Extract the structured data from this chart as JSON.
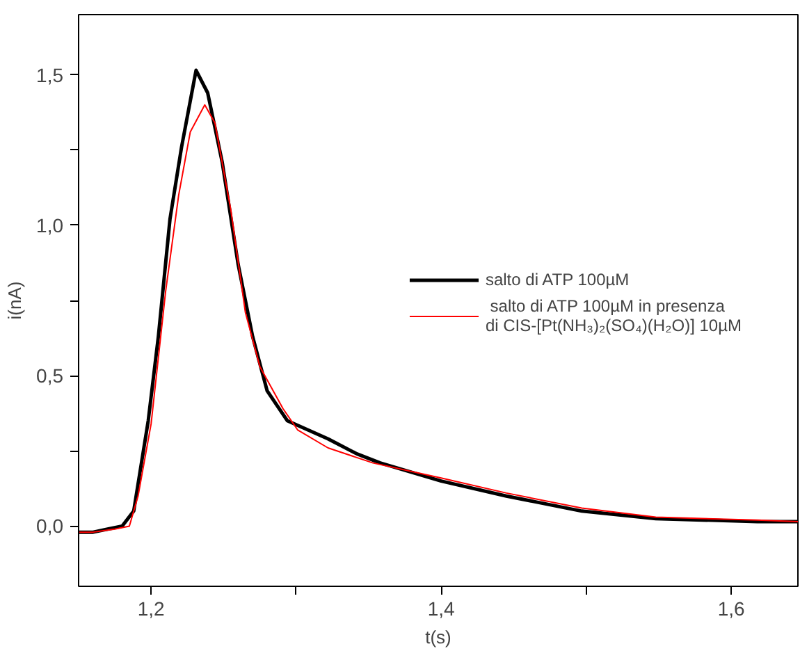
{
  "chart_data": {
    "type": "line",
    "xlabel": "t(s)",
    "ylabel": "i(nA)",
    "xlim": [
      1.15,
      1.646
    ],
    "ylim": [
      -0.2,
      1.7
    ],
    "xticks": [
      {
        "value": 1.2,
        "label": "1,2"
      },
      {
        "value": 1.3,
        "label": null
      },
      {
        "value": 1.4,
        "label": "1,4"
      },
      {
        "value": 1.5,
        "label": null
      },
      {
        "value": 1.6,
        "label": "1,6"
      }
    ],
    "yticks": [
      {
        "value": 0.0,
        "label": "0,0"
      },
      {
        "value": 0.25,
        "label": null
      },
      {
        "value": 0.5,
        "label": "0,5"
      },
      {
        "value": 0.75,
        "label": null
      },
      {
        "value": 1.0,
        "label": "1,0"
      },
      {
        "value": 1.25,
        "label": null
      },
      {
        "value": 1.5,
        "label": "1,5"
      }
    ],
    "grid": false,
    "legend": "right",
    "line_style": "solid",
    "marker": "none",
    "series": [
      {
        "name": "salto di ATP 100µM",
        "color": "#000000",
        "x": [
          1.15,
          1.16,
          1.17,
          1.18,
          1.188,
          1.198,
          1.205,
          1.213,
          1.221,
          1.231,
          1.239,
          1.249,
          1.26,
          1.27,
          1.28,
          1.294,
          1.322,
          1.342,
          1.358,
          1.4,
          1.445,
          1.497,
          1.548,
          1.618,
          1.646
        ],
        "values": [
          -0.02,
          -0.02,
          -0.01,
          0.0,
          0.05,
          0.35,
          0.63,
          1.02,
          1.26,
          1.515,
          1.44,
          1.21,
          0.87,
          0.63,
          0.45,
          0.35,
          0.29,
          0.24,
          0.21,
          0.15,
          0.1,
          0.05,
          0.025,
          0.015,
          0.015
        ]
      },
      {
        "name": " salto di ATP 100µM in presenza\ndi CIS-[Pt(NH₃)₂(SO₄)(H₂O)] 10µM",
        "color": "#ff0000",
        "x": [
          1.15,
          1.16,
          1.175,
          1.185,
          1.191,
          1.2,
          1.21,
          1.219,
          1.227,
          1.237,
          1.244,
          1.255,
          1.265,
          1.275,
          1.291,
          1.301,
          1.322,
          1.353,
          1.4,
          1.445,
          1.497,
          1.548,
          1.618,
          1.646
        ],
        "values": [
          -0.02,
          -0.02,
          -0.01,
          0.0,
          0.1,
          0.34,
          0.78,
          1.1,
          1.31,
          1.4,
          1.34,
          1.05,
          0.71,
          0.53,
          0.39,
          0.32,
          0.26,
          0.21,
          0.16,
          0.11,
          0.06,
          0.03,
          0.02,
          0.015
        ]
      }
    ]
  }
}
